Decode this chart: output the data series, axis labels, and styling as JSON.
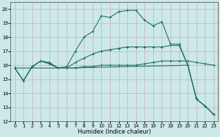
{
  "xlabel": "Humidex (Indice chaleur)",
  "xlim": [
    -0.5,
    23.5
  ],
  "ylim": [
    12,
    20.5
  ],
  "yticks": [
    12,
    13,
    14,
    15,
    16,
    17,
    18,
    19,
    20
  ],
  "xticks": [
    0,
    1,
    2,
    3,
    4,
    5,
    6,
    7,
    8,
    9,
    10,
    11,
    12,
    13,
    14,
    15,
    16,
    17,
    18,
    19,
    20,
    21,
    22,
    23
  ],
  "bg_color": "#cce8e8",
  "line_color": "#1a6e60",
  "lines": [
    {
      "x": [
        0,
        1,
        2,
        3,
        4,
        5,
        6,
        7,
        8,
        9,
        10,
        11,
        12,
        13,
        14,
        15,
        16,
        17,
        18,
        19,
        20,
        21,
        22,
        23
      ],
      "y": [
        15.8,
        14.9,
        15.9,
        16.3,
        16.2,
        15.8,
        15.9,
        17.0,
        18.0,
        18.4,
        19.5,
        19.4,
        19.8,
        19.9,
        19.9,
        19.2,
        18.8,
        19.1,
        17.5,
        17.5,
        16.0,
        13.6,
        13.1,
        12.5
      ]
    },
    {
      "x": [
        0,
        1,
        2,
        3,
        4,
        5,
        6,
        7,
        8,
        9,
        10,
        11,
        12,
        13,
        14,
        15,
        16,
        17,
        18,
        19,
        20,
        21,
        22,
        23
      ],
      "y": [
        15.8,
        14.9,
        15.9,
        16.3,
        16.1,
        15.8,
        15.8,
        15.8,
        15.9,
        15.9,
        16.0,
        16.0,
        16.0,
        16.0,
        16.0,
        16.1,
        16.2,
        16.3,
        16.3,
        16.3,
        16.3,
        16.2,
        16.1,
        16.0
      ]
    },
    {
      "x": [
        0,
        1,
        2,
        3,
        4,
        5,
        6,
        7,
        8,
        9,
        10,
        11,
        12,
        13,
        14,
        15,
        16,
        17,
        18,
        19,
        20,
        21,
        22,
        23
      ],
      "y": [
        15.8,
        14.9,
        15.9,
        16.3,
        16.1,
        15.8,
        15.8,
        16.2,
        16.5,
        16.8,
        17.0,
        17.1,
        17.2,
        17.3,
        17.3,
        17.3,
        17.3,
        17.3,
        17.4,
        17.4,
        16.0,
        13.6,
        13.1,
        12.5
      ]
    },
    {
      "x": [
        0,
        6,
        20,
        21,
        22,
        23
      ],
      "y": [
        15.8,
        15.8,
        16.0,
        13.6,
        13.1,
        12.5
      ]
    }
  ],
  "title_fontsize": 6.5,
  "label_fontsize": 6,
  "tick_fontsize": 5
}
